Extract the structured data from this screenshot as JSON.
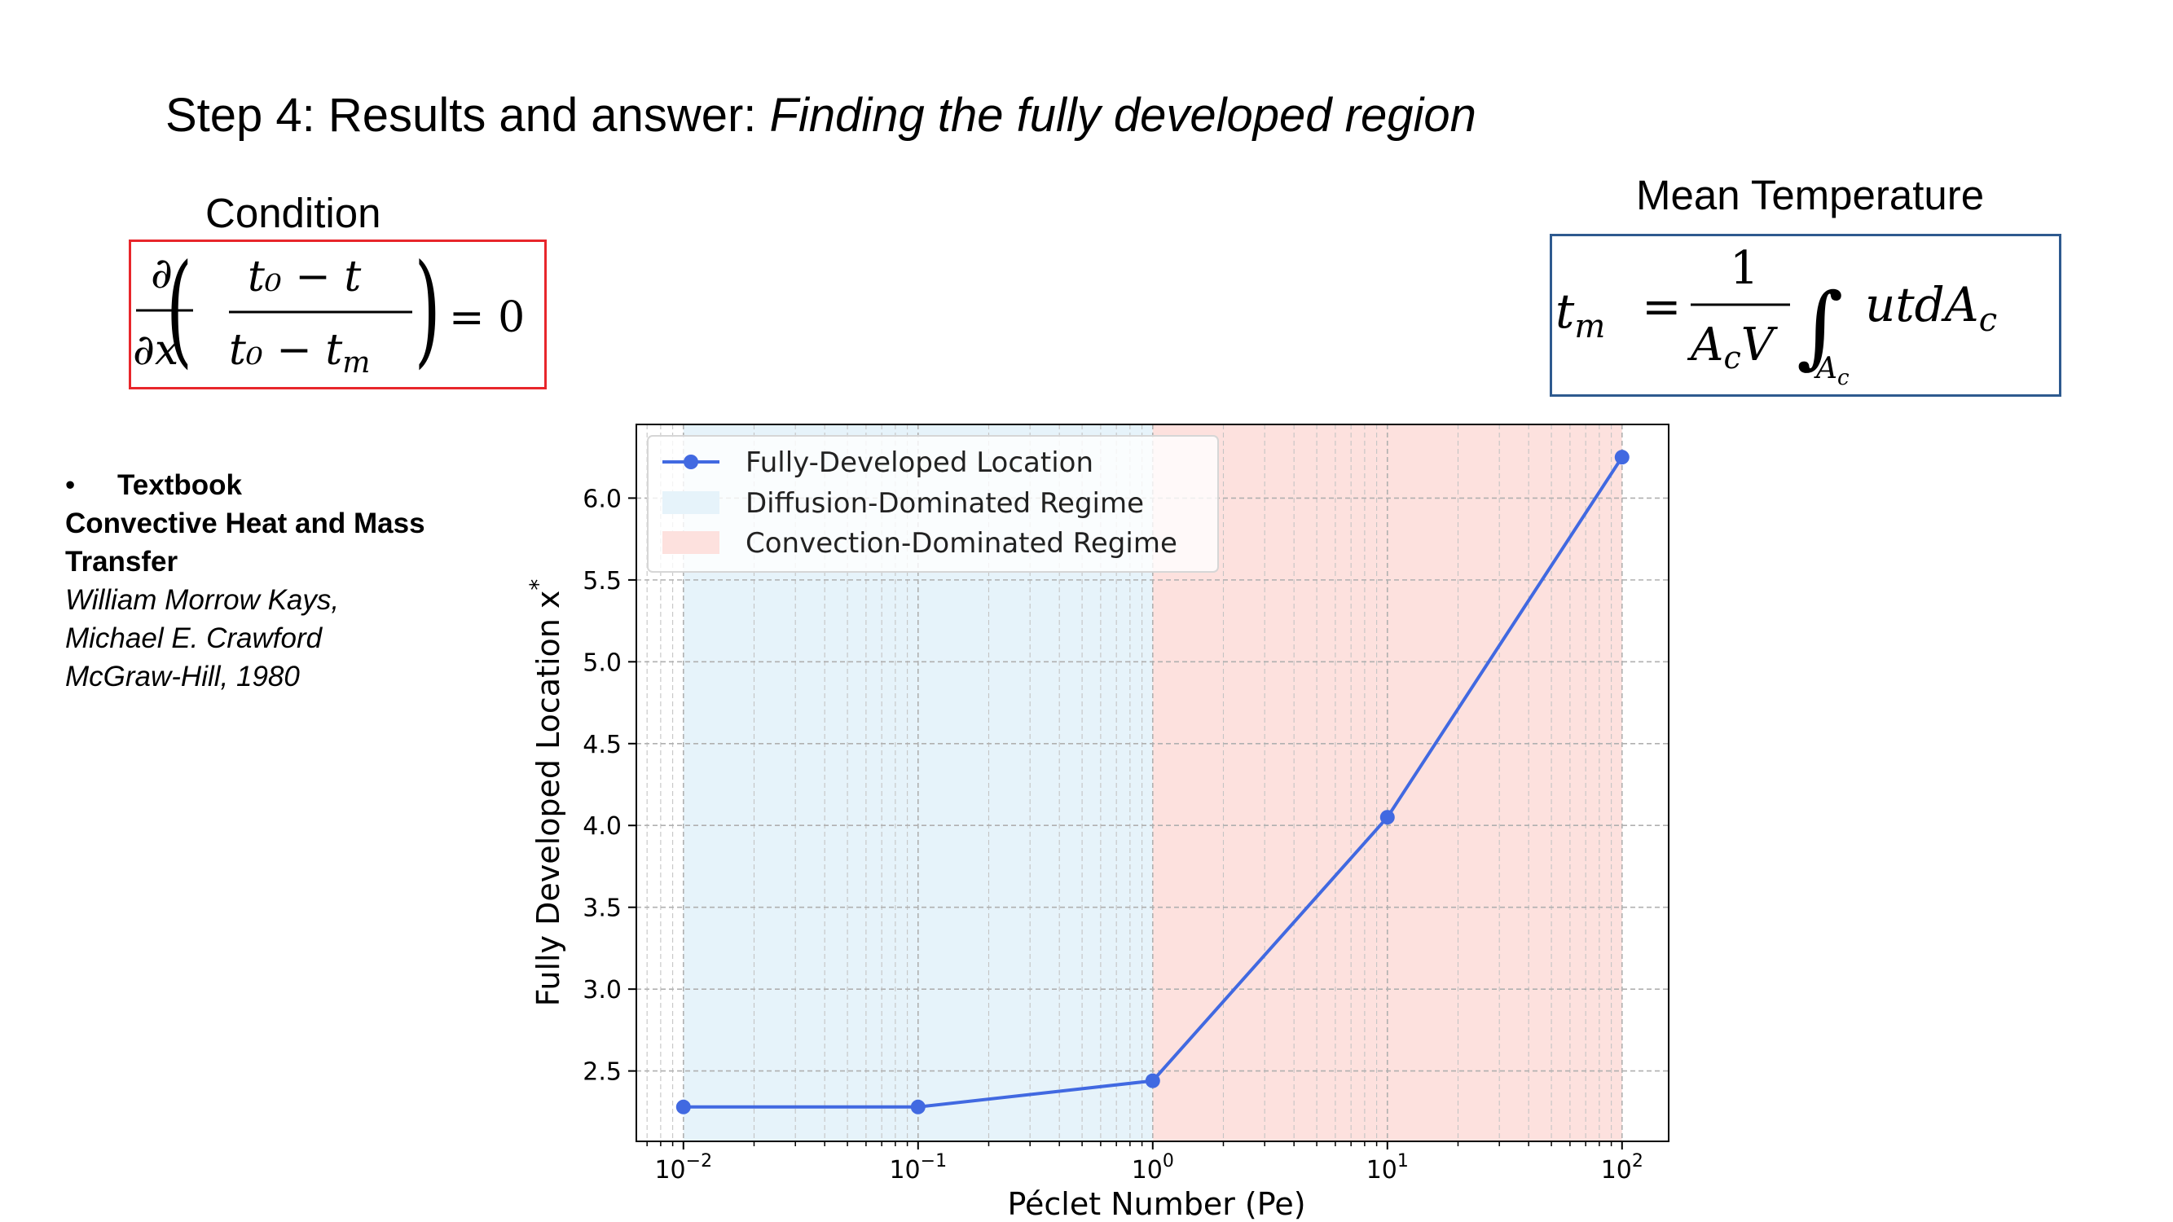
{
  "slide": {
    "title_main": "Step 4: Results and answer: ",
    "title_sub": "Finding the fully developed region",
    "condition_label": "Condition",
    "mean_label": "Mean Temperature"
  },
  "equations": {
    "condition": {
      "partial": "∂",
      "partial_x": "∂x",
      "num": "t₀ − t",
      "den_a": "t₀ − t",
      "den_b": "m",
      "rhs": "= 0"
    },
    "mean": {
      "lhs": "t",
      "lhs_sub": "m",
      "eq": "=",
      "one": "1",
      "den_a": "A",
      "den_a_sub": "c",
      "den_v": "V",
      "integral": "∫",
      "int_sub_a": "A",
      "int_sub_c": "c",
      "integrand": "utdA",
      "integrand_sub": "c"
    }
  },
  "reference": {
    "bullet": "•",
    "label": "Textbook",
    "book_title": "Convective Heat and Mass Transfer",
    "author1": "William Morrow Kays,",
    "author2": "Michael E. Crawford",
    "publisher": "McGraw-Hill, 1980"
  },
  "colors": {
    "line": "#4169e1",
    "diffusion": "#e6f3fa",
    "convection": "#fde1de",
    "condition_border": "#e8262b",
    "mean_border": "#2e5a8f"
  },
  "chart_data": {
    "type": "line",
    "xscale": "log",
    "x": [
      0.01,
      0.1,
      1,
      10,
      100
    ],
    "series": [
      {
        "name": "Fully-Developed Location",
        "values": [
          2.28,
          2.28,
          2.44,
          4.05,
          6.25
        ]
      }
    ],
    "regions": [
      {
        "name": "Diffusion-Dominated Regime",
        "x0": 0.01,
        "x1": 1
      },
      {
        "name": "Convection-Dominated Regime",
        "x0": 1,
        "x1": 100
      }
    ],
    "xlabel": "Péclet Number (Pe)",
    "ylabel": "Fully Developed Location x",
    "ylabel_sup": "*",
    "xlim": [
      0.0063,
      158
    ],
    "ylim": [
      2.07,
      6.45
    ],
    "x_ticks": [
      {
        "value": 0.01,
        "base": "10",
        "exp": "−2"
      },
      {
        "value": 0.1,
        "base": "10",
        "exp": "−1"
      },
      {
        "value": 1,
        "base": "10",
        "exp": "0"
      },
      {
        "value": 10,
        "base": "10",
        "exp": "1"
      },
      {
        "value": 100,
        "base": "10",
        "exp": "2"
      }
    ],
    "y_ticks": [
      "2.5",
      "3.0",
      "3.5",
      "4.0",
      "4.5",
      "5.0",
      "5.5",
      "6.0"
    ],
    "grid": true,
    "legend_position": "top-left"
  }
}
